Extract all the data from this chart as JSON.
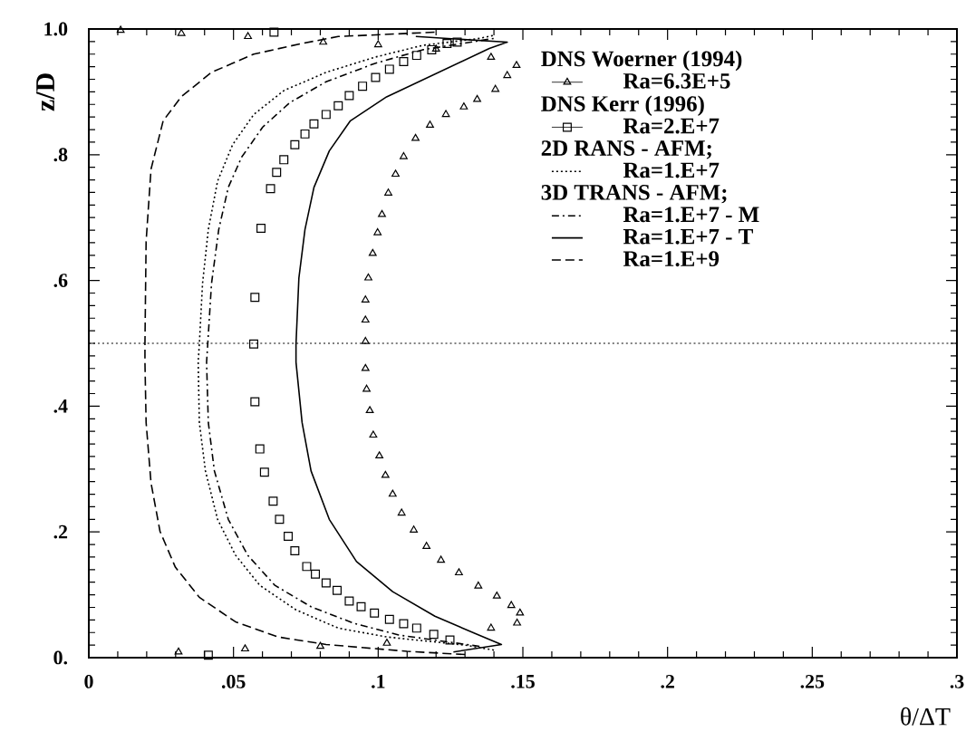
{
  "chart_data": {
    "type": "line",
    "xlabel": "θ/ΔT",
    "ylabel": "z/D",
    "annotations": [
      "DNS Woerner (1994)",
      "DNS Kerr (1996)",
      "2D RANS - AFM;",
      "3D TRANS - AFM;"
    ],
    "xlim": [
      0,
      0.3
    ],
    "ylim": [
      0,
      1
    ],
    "xticks": [
      0,
      {
        "value": 0.05,
        "label": ".05"
      },
      {
        "value": 0.1,
        "label": ".1"
      },
      {
        "value": 0.15,
        "label": ".15"
      },
      {
        "value": 0.2,
        "label": ".2"
      },
      {
        "value": 0.25,
        "label": ".25"
      },
      {
        "value": 0.3,
        "label": ".3"
      }
    ],
    "yticks": [
      {
        "value": 0,
        "label": "0."
      },
      {
        "value": 0.2,
        "label": ".2"
      },
      {
        "value": 0.4,
        "label": ".4"
      },
      {
        "value": 0.6,
        "label": ".6"
      },
      {
        "value": 0.8,
        "label": ".8"
      },
      {
        "value": 1,
        "label": "1.0"
      }
    ],
    "grid": false,
    "legend": "top right",
    "ref_lines": [
      {
        "axis": "y",
        "value": 0.5,
        "line_style": "dotted"
      }
    ],
    "series": [
      {
        "name": "Ra=6.3E+5",
        "color": "#000000",
        "type": "scatter",
        "marker": "triangle",
        "x": [
          0.031,
          0.054,
          0.08,
          0.103,
          0.139,
          0.148,
          0.149,
          0.146,
          0.141,
          0.1346,
          0.1279,
          0.1217,
          0.1167,
          0.1123,
          0.1081,
          0.105,
          0.1025,
          0.1004,
          0.0983,
          0.0971,
          0.096,
          0.0956,
          0.0956,
          0.0956,
          0.0956,
          0.0966,
          0.0981,
          0.0998,
          0.1013,
          0.1035,
          0.106,
          0.1088,
          0.1129,
          0.1179,
          0.1234,
          0.1296,
          0.1342,
          0.1405,
          0.1446,
          0.1478,
          0.139,
          0.12,
          0.1,
          0.081,
          0.055,
          0.032,
          0.011
        ],
        "values": [
          0.009,
          0.014,
          0.018,
          0.023,
          0.047,
          0.055,
          0.071,
          0.083,
          0.098,
          0.114,
          0.135,
          0.155,
          0.177,
          0.203,
          0.23,
          0.26,
          0.29,
          0.321,
          0.354,
          0.393,
          0.427,
          0.46,
          0.503,
          0.537,
          0.569,
          0.604,
          0.643,
          0.676,
          0.705,
          0.739,
          0.769,
          0.797,
          0.826,
          0.847,
          0.864,
          0.876,
          0.888,
          0.904,
          0.926,
          0.942,
          0.955,
          0.968,
          0.975,
          0.979,
          0.988,
          0.993,
          0.998
        ]
      },
      {
        "name": "Ra=2.E+7",
        "color": "#000000",
        "type": "scatter",
        "marker": "square",
        "x": [
          0.0413,
          0.1248,
          0.1192,
          0.1133,
          0.1088,
          0.1039,
          0.0987,
          0.0941,
          0.09,
          0.0858,
          0.082,
          0.0783,
          0.0753,
          0.0712,
          0.0689,
          0.0659,
          0.0637,
          0.0607,
          0.0591,
          0.0574,
          0.057,
          0.0574,
          0.0595,
          0.0628,
          0.0649,
          0.0674,
          0.0712,
          0.0747,
          0.0778,
          0.082,
          0.0862,
          0.09,
          0.0946,
          0.0991,
          0.1039,
          0.1088,
          0.1133,
          0.1185,
          0.1238,
          0.1273,
          0.064
        ],
        "values": [
          0.004,
          0.028,
          0.037,
          0.047,
          0.054,
          0.061,
          0.071,
          0.081,
          0.09,
          0.107,
          0.119,
          0.133,
          0.145,
          0.17,
          0.193,
          0.22,
          0.249,
          0.295,
          0.332,
          0.407,
          0.499,
          0.573,
          0.683,
          0.746,
          0.772,
          0.792,
          0.816,
          0.833,
          0.849,
          0.864,
          0.878,
          0.894,
          0.909,
          0.923,
          0.936,
          0.948,
          0.958,
          0.967,
          0.977,
          0.979,
          0.995
        ]
      },
      {
        "name": "Ra=1.E+7",
        "color": "#000000",
        "line_style": "dotted",
        "x": [
          0.14,
          0.13,
          0.1029,
          0.0862,
          0.0716,
          0.0591,
          0.0507,
          0.0445,
          0.0403,
          0.0382,
          0.0378,
          0.0382,
          0.0393,
          0.0413,
          0.0445,
          0.0497,
          0.057,
          0.0674,
          0.082,
          0.0987,
          0.1154,
          0.135,
          0.14
        ],
        "values": [
          0.012,
          0.02,
          0.033,
          0.047,
          0.076,
          0.115,
          0.163,
          0.22,
          0.297,
          0.374,
          0.47,
          0.499,
          0.595,
          0.681,
          0.758,
          0.816,
          0.864,
          0.902,
          0.931,
          0.955,
          0.974,
          0.985,
          0.99
        ]
      },
      {
        "name": "Ra=1.E+7 - M",
        "color": "#000000",
        "line_style": "dashdot",
        "x": [
          0.135,
          0.1071,
          0.0914,
          0.0768,
          0.0643,
          0.0549,
          0.0482,
          0.0434,
          0.0413,
          0.0407,
          0.0411,
          0.0424,
          0.0449,
          0.0482,
          0.0528,
          0.0601,
          0.0695,
          0.082,
          0.0987,
          0.1154,
          0.14
        ],
        "values": [
          0.018,
          0.036,
          0.055,
          0.081,
          0.115,
          0.163,
          0.22,
          0.297,
          0.374,
          0.47,
          0.499,
          0.595,
          0.681,
          0.748,
          0.796,
          0.844,
          0.883,
          0.916,
          0.945,
          0.967,
          0.985
        ]
      },
      {
        "name": "Ra=1.E+7 - T",
        "color": "#000000",
        "line_style": "solid",
        "x": [
          0.126,
          0.1426,
          0.1342,
          0.1196,
          0.105,
          0.0925,
          0.0831,
          0.0768,
          0.0737,
          0.0716,
          0.0716,
          0.0726,
          0.0747,
          0.0778,
          0.0831,
          0.0904,
          0.1029,
          0.1384,
          0.1446,
          0.113
        ],
        "values": [
          0.009,
          0.021,
          0.037,
          0.066,
          0.105,
          0.153,
          0.22,
          0.297,
          0.374,
          0.47,
          0.499,
          0.604,
          0.681,
          0.748,
          0.806,
          0.854,
          0.892,
          0.969,
          0.979,
          0.988
        ]
      },
      {
        "name": "Ra=1.E+9",
        "color": "#000000",
        "line_style": "dashed",
        "x": [
          0.13,
          0.11,
          0.082,
          0.0653,
          0.0507,
          0.0382,
          0.0299,
          0.0246,
          0.0215,
          0.0198,
          0.0194,
          0.0194,
          0.0198,
          0.0215,
          0.0257,
          0.0319,
          0.0424,
          0.057,
          0.0737,
          0.0862,
          0.12
        ],
        "values": [
          0.005,
          0.01,
          0.021,
          0.033,
          0.057,
          0.096,
          0.144,
          0.201,
          0.278,
          0.374,
          0.47,
          0.499,
          0.662,
          0.777,
          0.854,
          0.892,
          0.931,
          0.96,
          0.977,
          0.988,
          0.995
        ]
      }
    ]
  }
}
